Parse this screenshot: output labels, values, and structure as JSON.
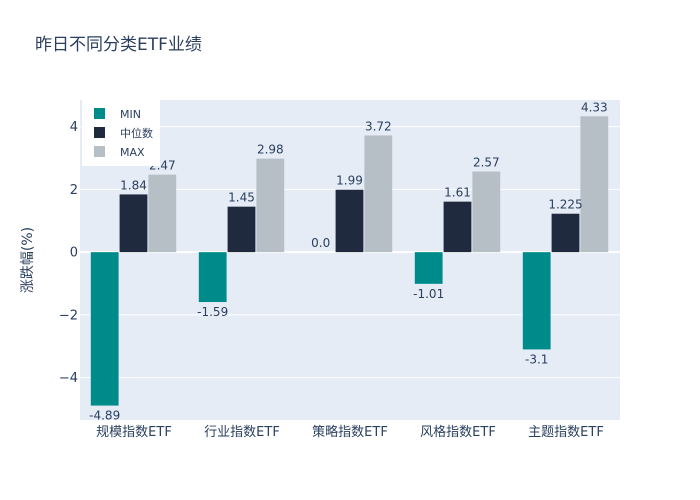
{
  "chart_data": {
    "type": "bar",
    "title": "昨日不同分类ETF业绩",
    "xlabel": "",
    "ylabel": "涨跌幅(%)",
    "ylim": [
      -5.35,
      4.85
    ],
    "yticks": [
      -4,
      -2,
      0,
      2,
      4
    ],
    "ytick_labels": [
      "−4",
      "−2",
      "0",
      "2",
      "4"
    ],
    "categories": [
      "规模指数ETF",
      "行业指数ETF",
      "策略指数ETF",
      "风格指数ETF",
      "主题指数ETF"
    ],
    "series": [
      {
        "name": "MIN",
        "color": "#008b8b",
        "values": [
          -4.89,
          -1.59,
          0.0,
          -1.01,
          -3.1
        ],
        "labels": [
          "-4.89",
          "-1.59",
          "0.0",
          "-1.01",
          "-3.1"
        ]
      },
      {
        "name": "中位数",
        "color": "#1f2a3e",
        "values": [
          1.84,
          1.45,
          1.99,
          1.61,
          1.225
        ],
        "labels": [
          "1.84",
          "1.45",
          "1.99",
          "1.61",
          "1.225"
        ]
      },
      {
        "name": "MAX",
        "color": "#b6bec6",
        "values": [
          2.47,
          2.98,
          3.72,
          2.57,
          4.33
        ],
        "labels": [
          "2.47",
          "2.98",
          "3.72",
          "2.57",
          "4.33"
        ]
      }
    ],
    "legend_position": "top-left",
    "grid": true,
    "colors": {
      "plot_bg": "#e5ecf6",
      "grid": "#ffffff",
      "text": "#2a3f5f"
    }
  }
}
